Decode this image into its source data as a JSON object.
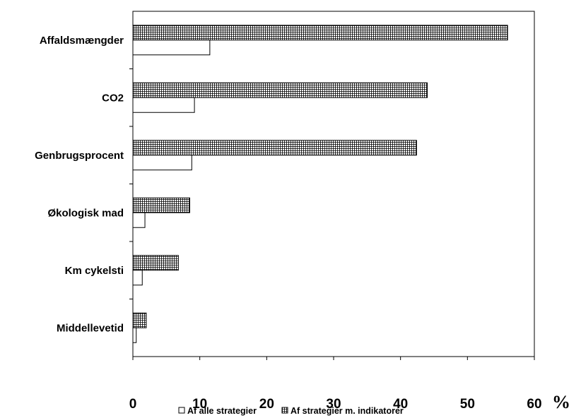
{
  "chart_data": {
    "type": "bar",
    "orientation": "horizontal",
    "categories": [
      "Affaldsmængder",
      "CO2",
      "Genbrugsprocent",
      "Økologisk mad",
      "Km cykelsti",
      "Middellevetid"
    ],
    "series": [
      {
        "name": "Af alle strategier",
        "pattern": "none",
        "color": "#ffffff",
        "values": [
          11.5,
          9.2,
          8.8,
          1.8,
          1.4,
          0.5
        ]
      },
      {
        "name": "Af strategier m. indikatorer",
        "pattern": "crosshatch",
        "color": "#000000",
        "values": [
          56,
          44,
          42.4,
          8.5,
          6.8,
          2
        ]
      }
    ],
    "xlim": [
      0,
      60
    ],
    "xticks": [
      "0",
      "10",
      "20",
      "30",
      "40",
      "50",
      "60"
    ],
    "xunit": "%",
    "grid": false,
    "legend_position": "bottom"
  }
}
